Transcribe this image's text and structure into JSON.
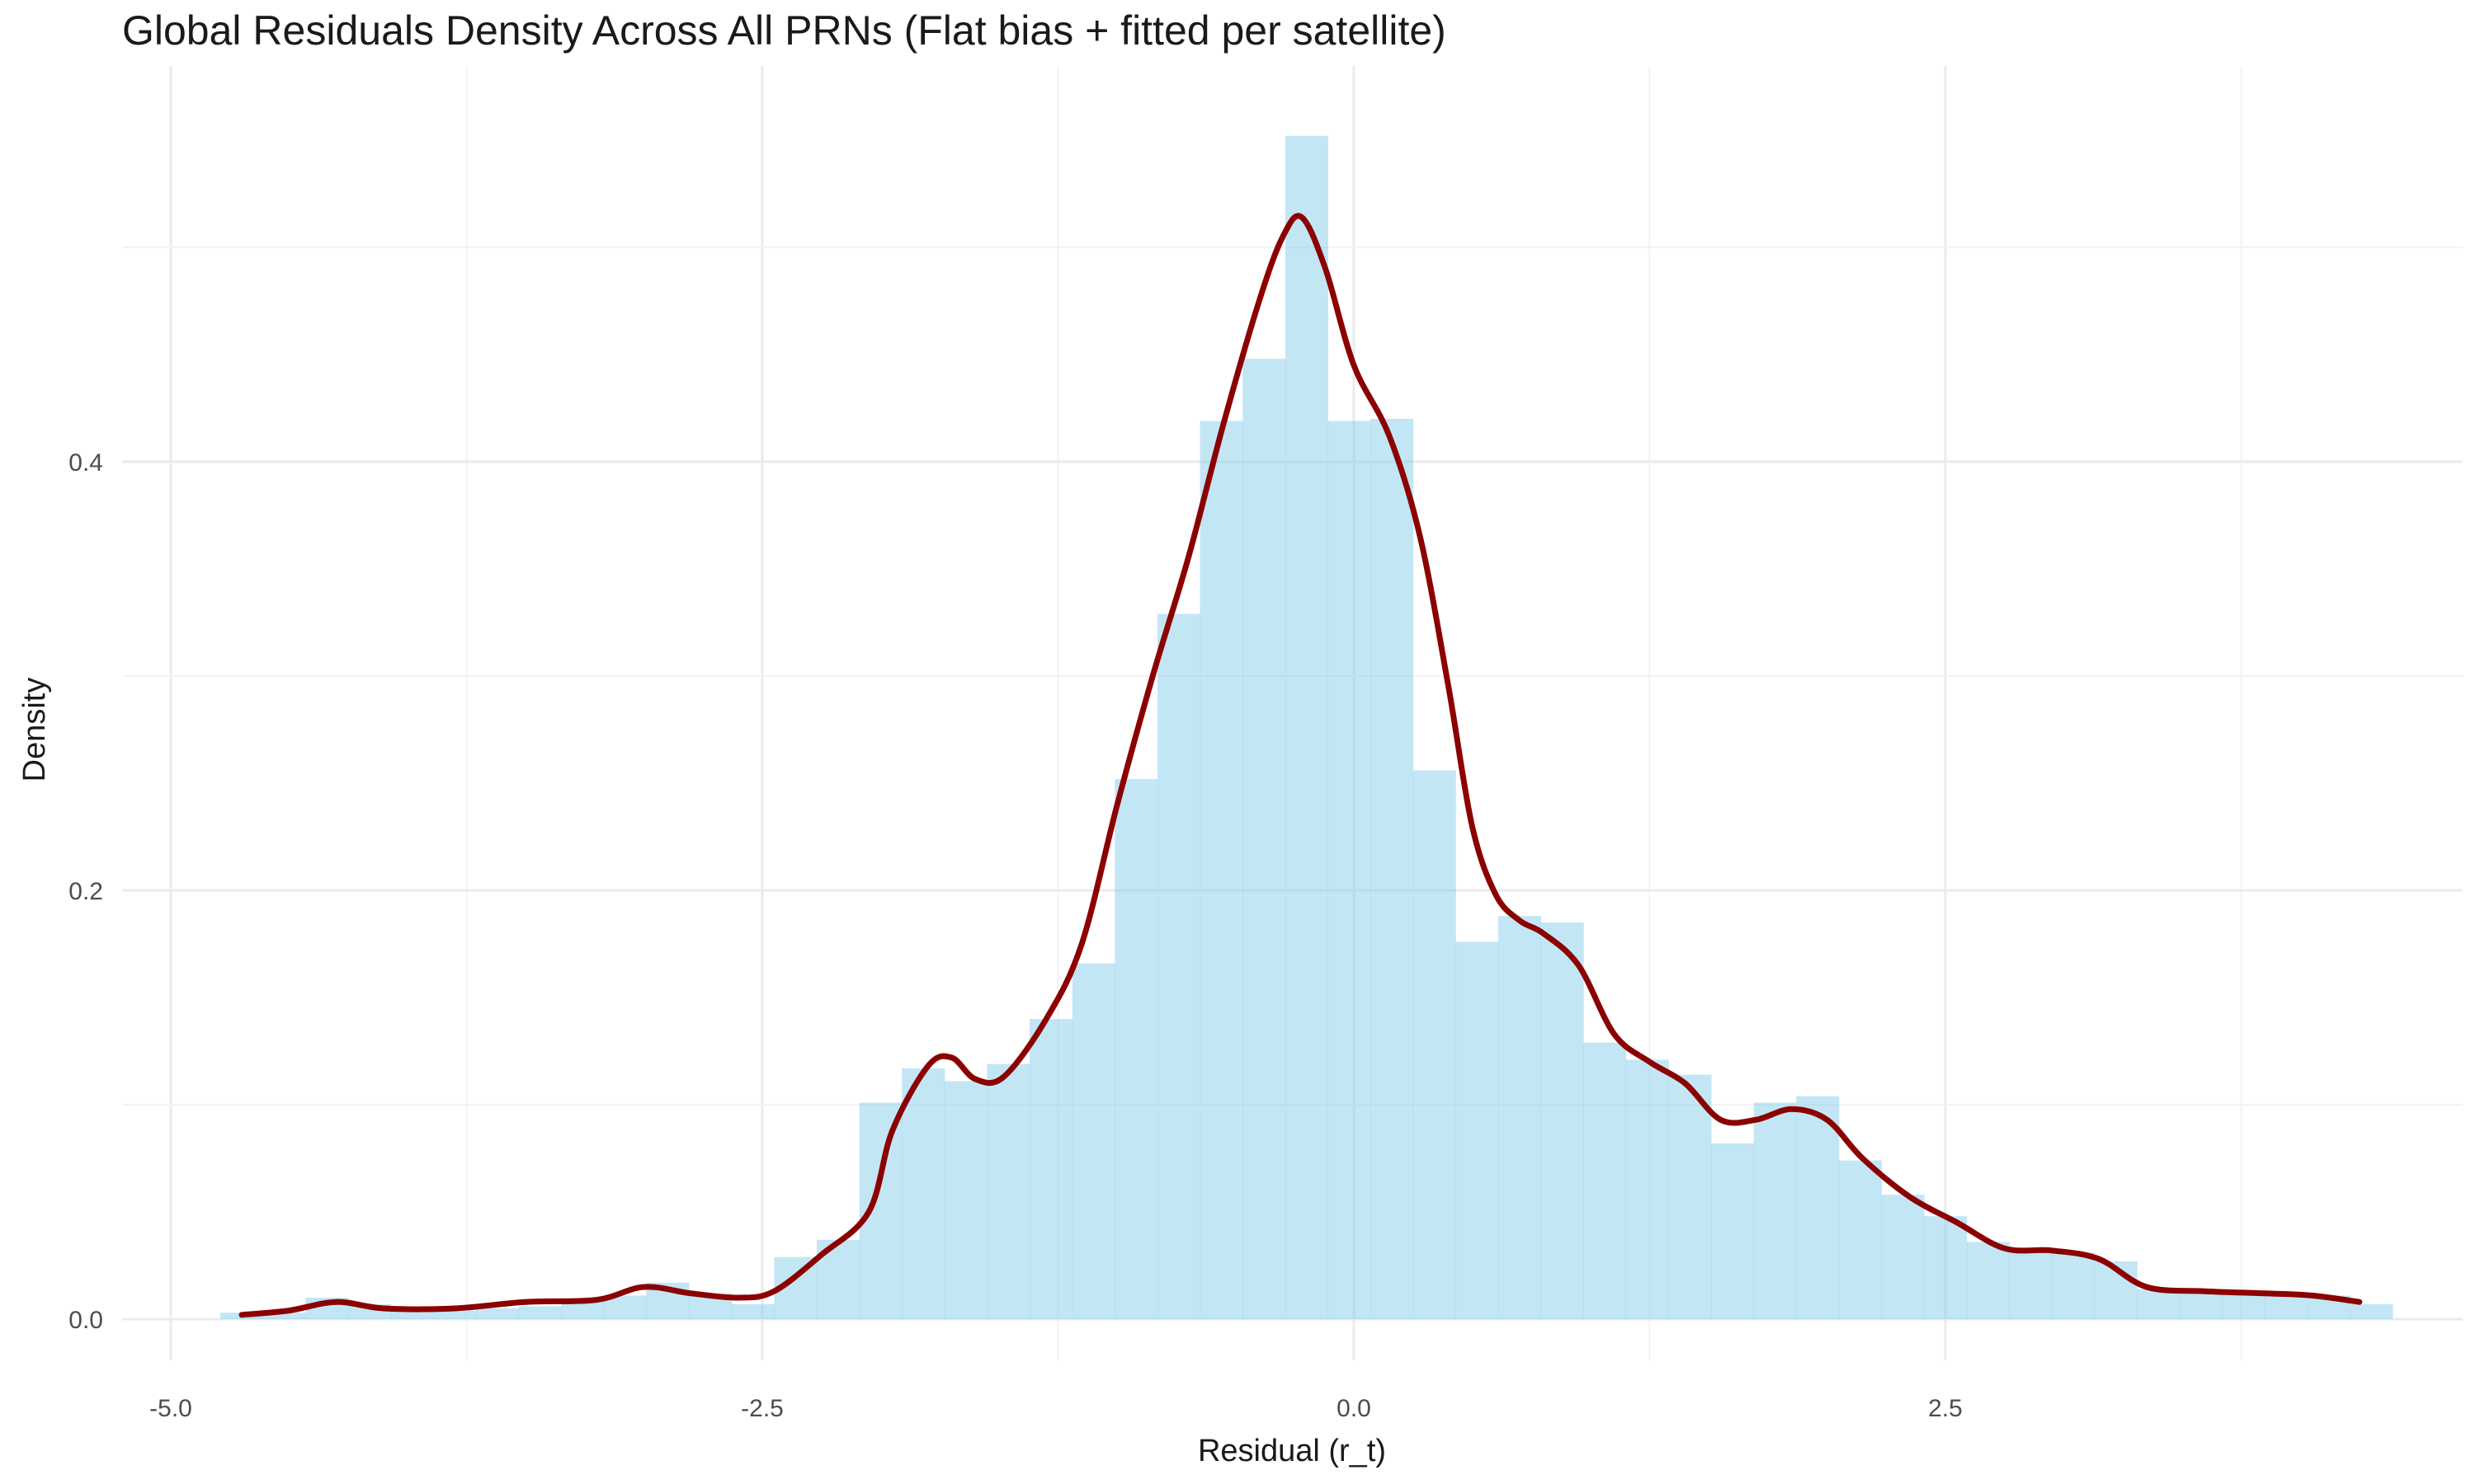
{
  "chart_data": {
    "type": "bar",
    "title": "Global Residuals Density Across All PRNs (Flat bias + fitted per satellite)",
    "xlabel": "Residual (r_t)",
    "ylabel": "Density",
    "xlim": [
      -5.0,
      4.8
    ],
    "ylim": [
      -0.028,
      0.58
    ],
    "x_ticks": [
      -5.0,
      -2.5,
      0.0,
      2.5
    ],
    "x_tick_labels": [
      "-5.0",
      "-2.5",
      "0.0",
      "2.5"
    ],
    "y_ticks": [
      0.0,
      0.2,
      0.4
    ],
    "y_tick_labels": [
      "0.0",
      "0.2",
      "0.4"
    ],
    "grid": true,
    "bin_width": 0.18,
    "histogram": {
      "name": "histogram",
      "color": "#87ceeb",
      "bins": [
        {
          "x0": -4.79,
          "x1": -4.61,
          "value": 0.003
        },
        {
          "x0": -4.61,
          "x1": -4.43,
          "value": 0.003
        },
        {
          "x0": -4.43,
          "x1": -4.25,
          "value": 0.01
        },
        {
          "x0": -4.25,
          "x1": -4.07,
          "value": 0.007
        },
        {
          "x0": -4.07,
          "x1": -3.89,
          "value": 0.004
        },
        {
          "x0": -3.89,
          "x1": -3.71,
          "value": 0.004
        },
        {
          "x0": -3.71,
          "x1": -3.53,
          "value": 0.005
        },
        {
          "x0": -3.53,
          "x1": -3.35,
          "value": 0.006
        },
        {
          "x0": -3.35,
          "x1": -3.17,
          "value": 0.009
        },
        {
          "x0": -3.17,
          "x1": -2.99,
          "value": 0.011
        },
        {
          "x0": -2.99,
          "x1": -2.81,
          "value": 0.017
        },
        {
          "x0": -2.81,
          "x1": -2.63,
          "value": 0.012
        },
        {
          "x0": -2.63,
          "x1": -2.45,
          "value": 0.007
        },
        {
          "x0": -2.45,
          "x1": -2.27,
          "value": 0.029
        },
        {
          "x0": -2.27,
          "x1": -2.09,
          "value": 0.037
        },
        {
          "x0": -2.09,
          "x1": -1.91,
          "value": 0.101
        },
        {
          "x0": -1.91,
          "x1": -1.73,
          "value": 0.117
        },
        {
          "x0": -1.73,
          "x1": -1.55,
          "value": 0.111
        },
        {
          "x0": -1.55,
          "x1": -1.37,
          "value": 0.119
        },
        {
          "x0": -1.37,
          "x1": -1.19,
          "value": 0.14
        },
        {
          "x0": -1.19,
          "x1": -1.01,
          "value": 0.166
        },
        {
          "x0": -1.01,
          "x1": -0.83,
          "value": 0.252
        },
        {
          "x0": -0.83,
          "x1": -0.65,
          "value": 0.329
        },
        {
          "x0": -0.65,
          "x1": -0.47,
          "value": 0.419
        },
        {
          "x0": -0.47,
          "x1": -0.29,
          "value": 0.448
        },
        {
          "x0": -0.29,
          "x1": -0.11,
          "value": 0.552
        },
        {
          "x0": -0.11,
          "x1": 0.07,
          "value": 0.419
        },
        {
          "x0": 0.07,
          "x1": 0.25,
          "value": 0.42
        },
        {
          "x0": 0.25,
          "x1": 0.43,
          "value": 0.256
        },
        {
          "x0": 0.43,
          "x1": 0.61,
          "value": 0.176
        },
        {
          "x0": 0.61,
          "x1": 0.79,
          "value": 0.188
        },
        {
          "x0": 0.79,
          "x1": 0.97,
          "value": 0.185
        },
        {
          "x0": 0.97,
          "x1": 1.15,
          "value": 0.129
        },
        {
          "x0": 1.15,
          "x1": 1.33,
          "value": 0.121
        },
        {
          "x0": 1.33,
          "x1": 1.51,
          "value": 0.114
        },
        {
          "x0": 1.51,
          "x1": 1.69,
          "value": 0.082
        },
        {
          "x0": 1.69,
          "x1": 1.87,
          "value": 0.101
        },
        {
          "x0": 1.87,
          "x1": 2.05,
          "value": 0.104
        },
        {
          "x0": 2.05,
          "x1": 2.23,
          "value": 0.074
        },
        {
          "x0": 2.23,
          "x1": 2.41,
          "value": 0.058
        },
        {
          "x0": 2.41,
          "x1": 2.59,
          "value": 0.048
        },
        {
          "x0": 2.59,
          "x1": 2.77,
          "value": 0.036
        },
        {
          "x0": 2.77,
          "x1": 2.95,
          "value": 0.032
        },
        {
          "x0": 2.95,
          "x1": 3.13,
          "value": 0.031
        },
        {
          "x0": 3.13,
          "x1": 3.31,
          "value": 0.027
        },
        {
          "x0": 3.31,
          "x1": 3.49,
          "value": 0.014
        },
        {
          "x0": 3.49,
          "x1": 3.67,
          "value": 0.013
        },
        {
          "x0": 3.67,
          "x1": 3.85,
          "value": 0.012
        },
        {
          "x0": 3.85,
          "x1": 4.03,
          "value": 0.011
        },
        {
          "x0": 4.03,
          "x1": 4.21,
          "value": 0.011
        },
        {
          "x0": 4.21,
          "x1": 4.39,
          "value": 0.007
        }
      ]
    },
    "density_curve": {
      "name": "density",
      "color": "#8b0000",
      "points": [
        [
          -4.7,
          0.002
        ],
        [
          -4.5,
          0.004
        ],
        [
          -4.3,
          0.008
        ],
        [
          -4.1,
          0.005
        ],
        [
          -3.8,
          0.005
        ],
        [
          -3.5,
          0.008
        ],
        [
          -3.2,
          0.009
        ],
        [
          -3.0,
          0.015
        ],
        [
          -2.8,
          0.012
        ],
        [
          -2.6,
          0.01
        ],
        [
          -2.45,
          0.013
        ],
        [
          -2.25,
          0.03
        ],
        [
          -2.05,
          0.05
        ],
        [
          -1.95,
          0.088
        ],
        [
          -1.8,
          0.118
        ],
        [
          -1.7,
          0.122
        ],
        [
          -1.6,
          0.112
        ],
        [
          -1.48,
          0.113
        ],
        [
          -1.3,
          0.14
        ],
        [
          -1.15,
          0.175
        ],
        [
          -1.0,
          0.24
        ],
        [
          -0.85,
          0.3
        ],
        [
          -0.7,
          0.355
        ],
        [
          -0.55,
          0.418
        ],
        [
          -0.4,
          0.475
        ],
        [
          -0.3,
          0.505
        ],
        [
          -0.22,
          0.514
        ],
        [
          -0.12,
          0.49
        ],
        [
          0.0,
          0.445
        ],
        [
          0.15,
          0.412
        ],
        [
          0.28,
          0.365
        ],
        [
          0.4,
          0.295
        ],
        [
          0.5,
          0.23
        ],
        [
          0.6,
          0.198
        ],
        [
          0.7,
          0.186
        ],
        [
          0.8,
          0.18
        ],
        [
          0.95,
          0.165
        ],
        [
          1.1,
          0.133
        ],
        [
          1.25,
          0.12
        ],
        [
          1.4,
          0.11
        ],
        [
          1.55,
          0.093
        ],
        [
          1.7,
          0.093
        ],
        [
          1.85,
          0.098
        ],
        [
          2.0,
          0.093
        ],
        [
          2.15,
          0.075
        ],
        [
          2.35,
          0.057
        ],
        [
          2.55,
          0.045
        ],
        [
          2.75,
          0.033
        ],
        [
          2.95,
          0.032
        ],
        [
          3.15,
          0.028
        ],
        [
          3.35,
          0.015
        ],
        [
          3.6,
          0.013
        ],
        [
          3.85,
          0.012
        ],
        [
          4.05,
          0.011
        ],
        [
          4.25,
          0.008
        ]
      ]
    }
  }
}
